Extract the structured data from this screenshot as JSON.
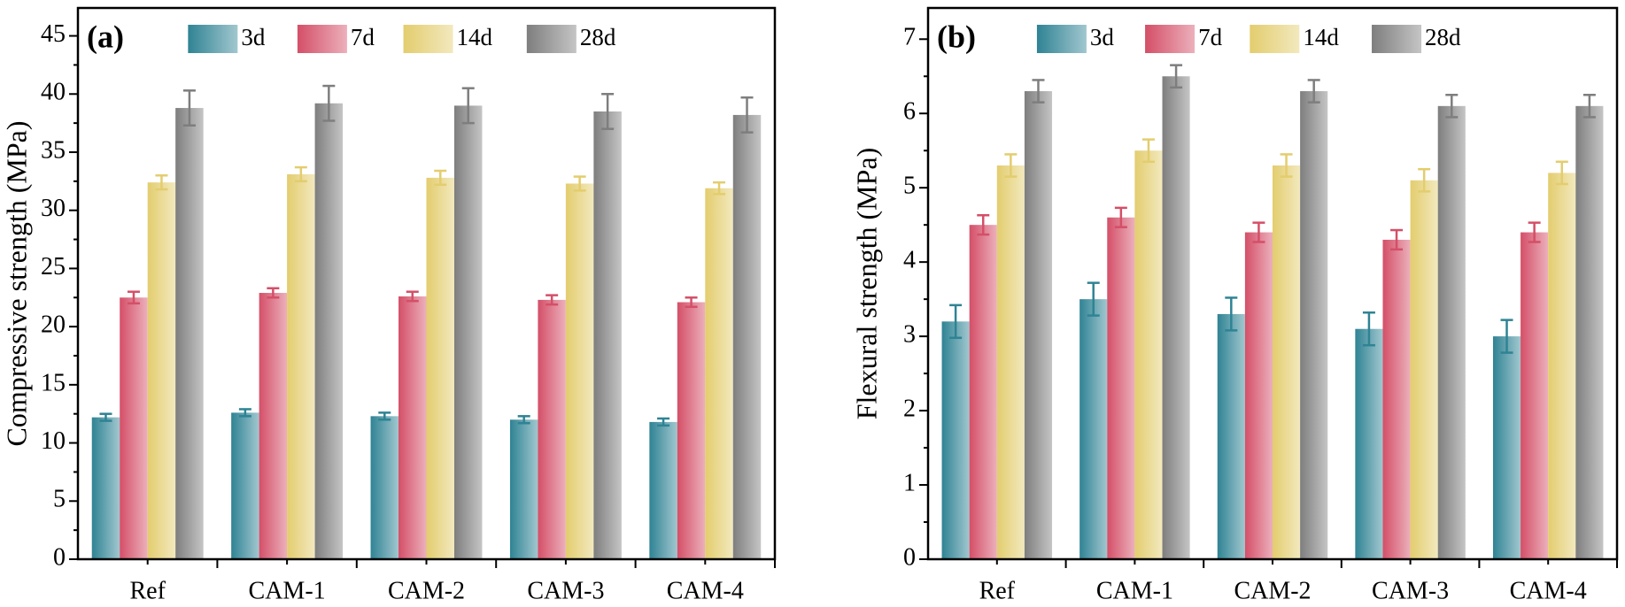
{
  "chart_data": [
    {
      "type": "bar",
      "panel_label": "(a)",
      "y_label": "Compressive strength (MPa)",
      "categories": [
        "Ref",
        "CAM-1",
        "CAM-2",
        "CAM-3",
        "CAM-4"
      ],
      "series": [
        {
          "name": "3d",
          "color": "#2f8394",
          "values": [
            12.2,
            12.6,
            12.3,
            12.0,
            11.8
          ],
          "errors": [
            0.3,
            0.3,
            0.3,
            0.3,
            0.3
          ]
        },
        {
          "name": "7d",
          "color": "#d44f68",
          "values": [
            22.5,
            22.9,
            22.6,
            22.3,
            22.1
          ],
          "errors": [
            0.5,
            0.4,
            0.4,
            0.4,
            0.4
          ]
        },
        {
          "name": "14d",
          "color": "#e3cd6e",
          "values": [
            32.4,
            33.1,
            32.8,
            32.3,
            31.9
          ],
          "errors": [
            0.6,
            0.6,
            0.6,
            0.6,
            0.5
          ]
        },
        {
          "name": "28d",
          "color": "#7e7e7e",
          "values": [
            38.8,
            39.2,
            39.0,
            38.5,
            38.2
          ],
          "errors": [
            1.5,
            1.5,
            1.5,
            1.5,
            1.5
          ]
        }
      ],
      "ylim": [
        0,
        47.4
      ],
      "yticks": [
        0,
        5,
        10,
        15,
        20,
        25,
        30,
        35,
        40,
        45
      ]
    },
    {
      "type": "bar",
      "panel_label": "(b)",
      "y_label": "Flexural strength (MPa)",
      "categories": [
        "Ref",
        "CAM-1",
        "CAM-2",
        "CAM-3",
        "CAM-4"
      ],
      "series": [
        {
          "name": "3d",
          "color": "#2f8394",
          "values": [
            3.2,
            3.5,
            3.3,
            3.1,
            3.0
          ],
          "errors": [
            0.22,
            0.22,
            0.22,
            0.22,
            0.22
          ]
        },
        {
          "name": "7d",
          "color": "#d44f68",
          "values": [
            4.5,
            4.6,
            4.4,
            4.3,
            4.4
          ],
          "errors": [
            0.13,
            0.13,
            0.13,
            0.13,
            0.13
          ]
        },
        {
          "name": "14d",
          "color": "#e3cd6e",
          "values": [
            5.3,
            5.5,
            5.3,
            5.1,
            5.2
          ],
          "errors": [
            0.15,
            0.15,
            0.15,
            0.15,
            0.15
          ]
        },
        {
          "name": "28d",
          "color": "#7e7e7e",
          "values": [
            6.3,
            6.5,
            6.3,
            6.1,
            6.1
          ],
          "errors": [
            0.15,
            0.15,
            0.15,
            0.15,
            0.15
          ]
        }
      ],
      "ylim": [
        0,
        7.42
      ],
      "yticks": [
        0,
        1,
        2,
        3,
        4,
        5,
        6,
        7
      ]
    }
  ]
}
